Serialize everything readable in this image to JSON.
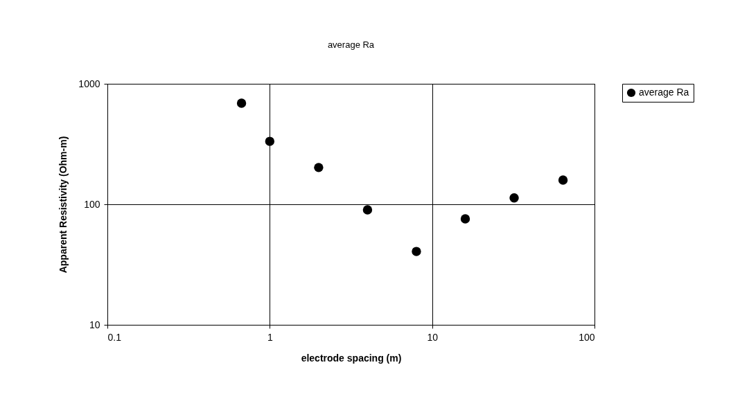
{
  "chart_data": {
    "type": "scatter",
    "title": "average Ra",
    "xlabel": "electrode spacing (m)",
    "ylabel": "Apparent Resistivity (Ohm-m)",
    "x": [
      0.67,
      1,
      2,
      4,
      8,
      16,
      32,
      64
    ],
    "series": [
      {
        "name": "average Ra",
        "color": "#000000",
        "values": [
          690,
          333,
          202,
          90,
          40.6,
          75.7,
          113,
          159
        ]
      }
    ],
    "log": "xy",
    "xlim": [
      0.1,
      100
    ],
    "ylim": [
      10,
      1000
    ],
    "xticks": [
      0.1,
      1,
      10,
      100
    ],
    "yticks": [
      10,
      100,
      1000
    ],
    "grid": true,
    "legend": "right",
    "marker": "circle"
  }
}
